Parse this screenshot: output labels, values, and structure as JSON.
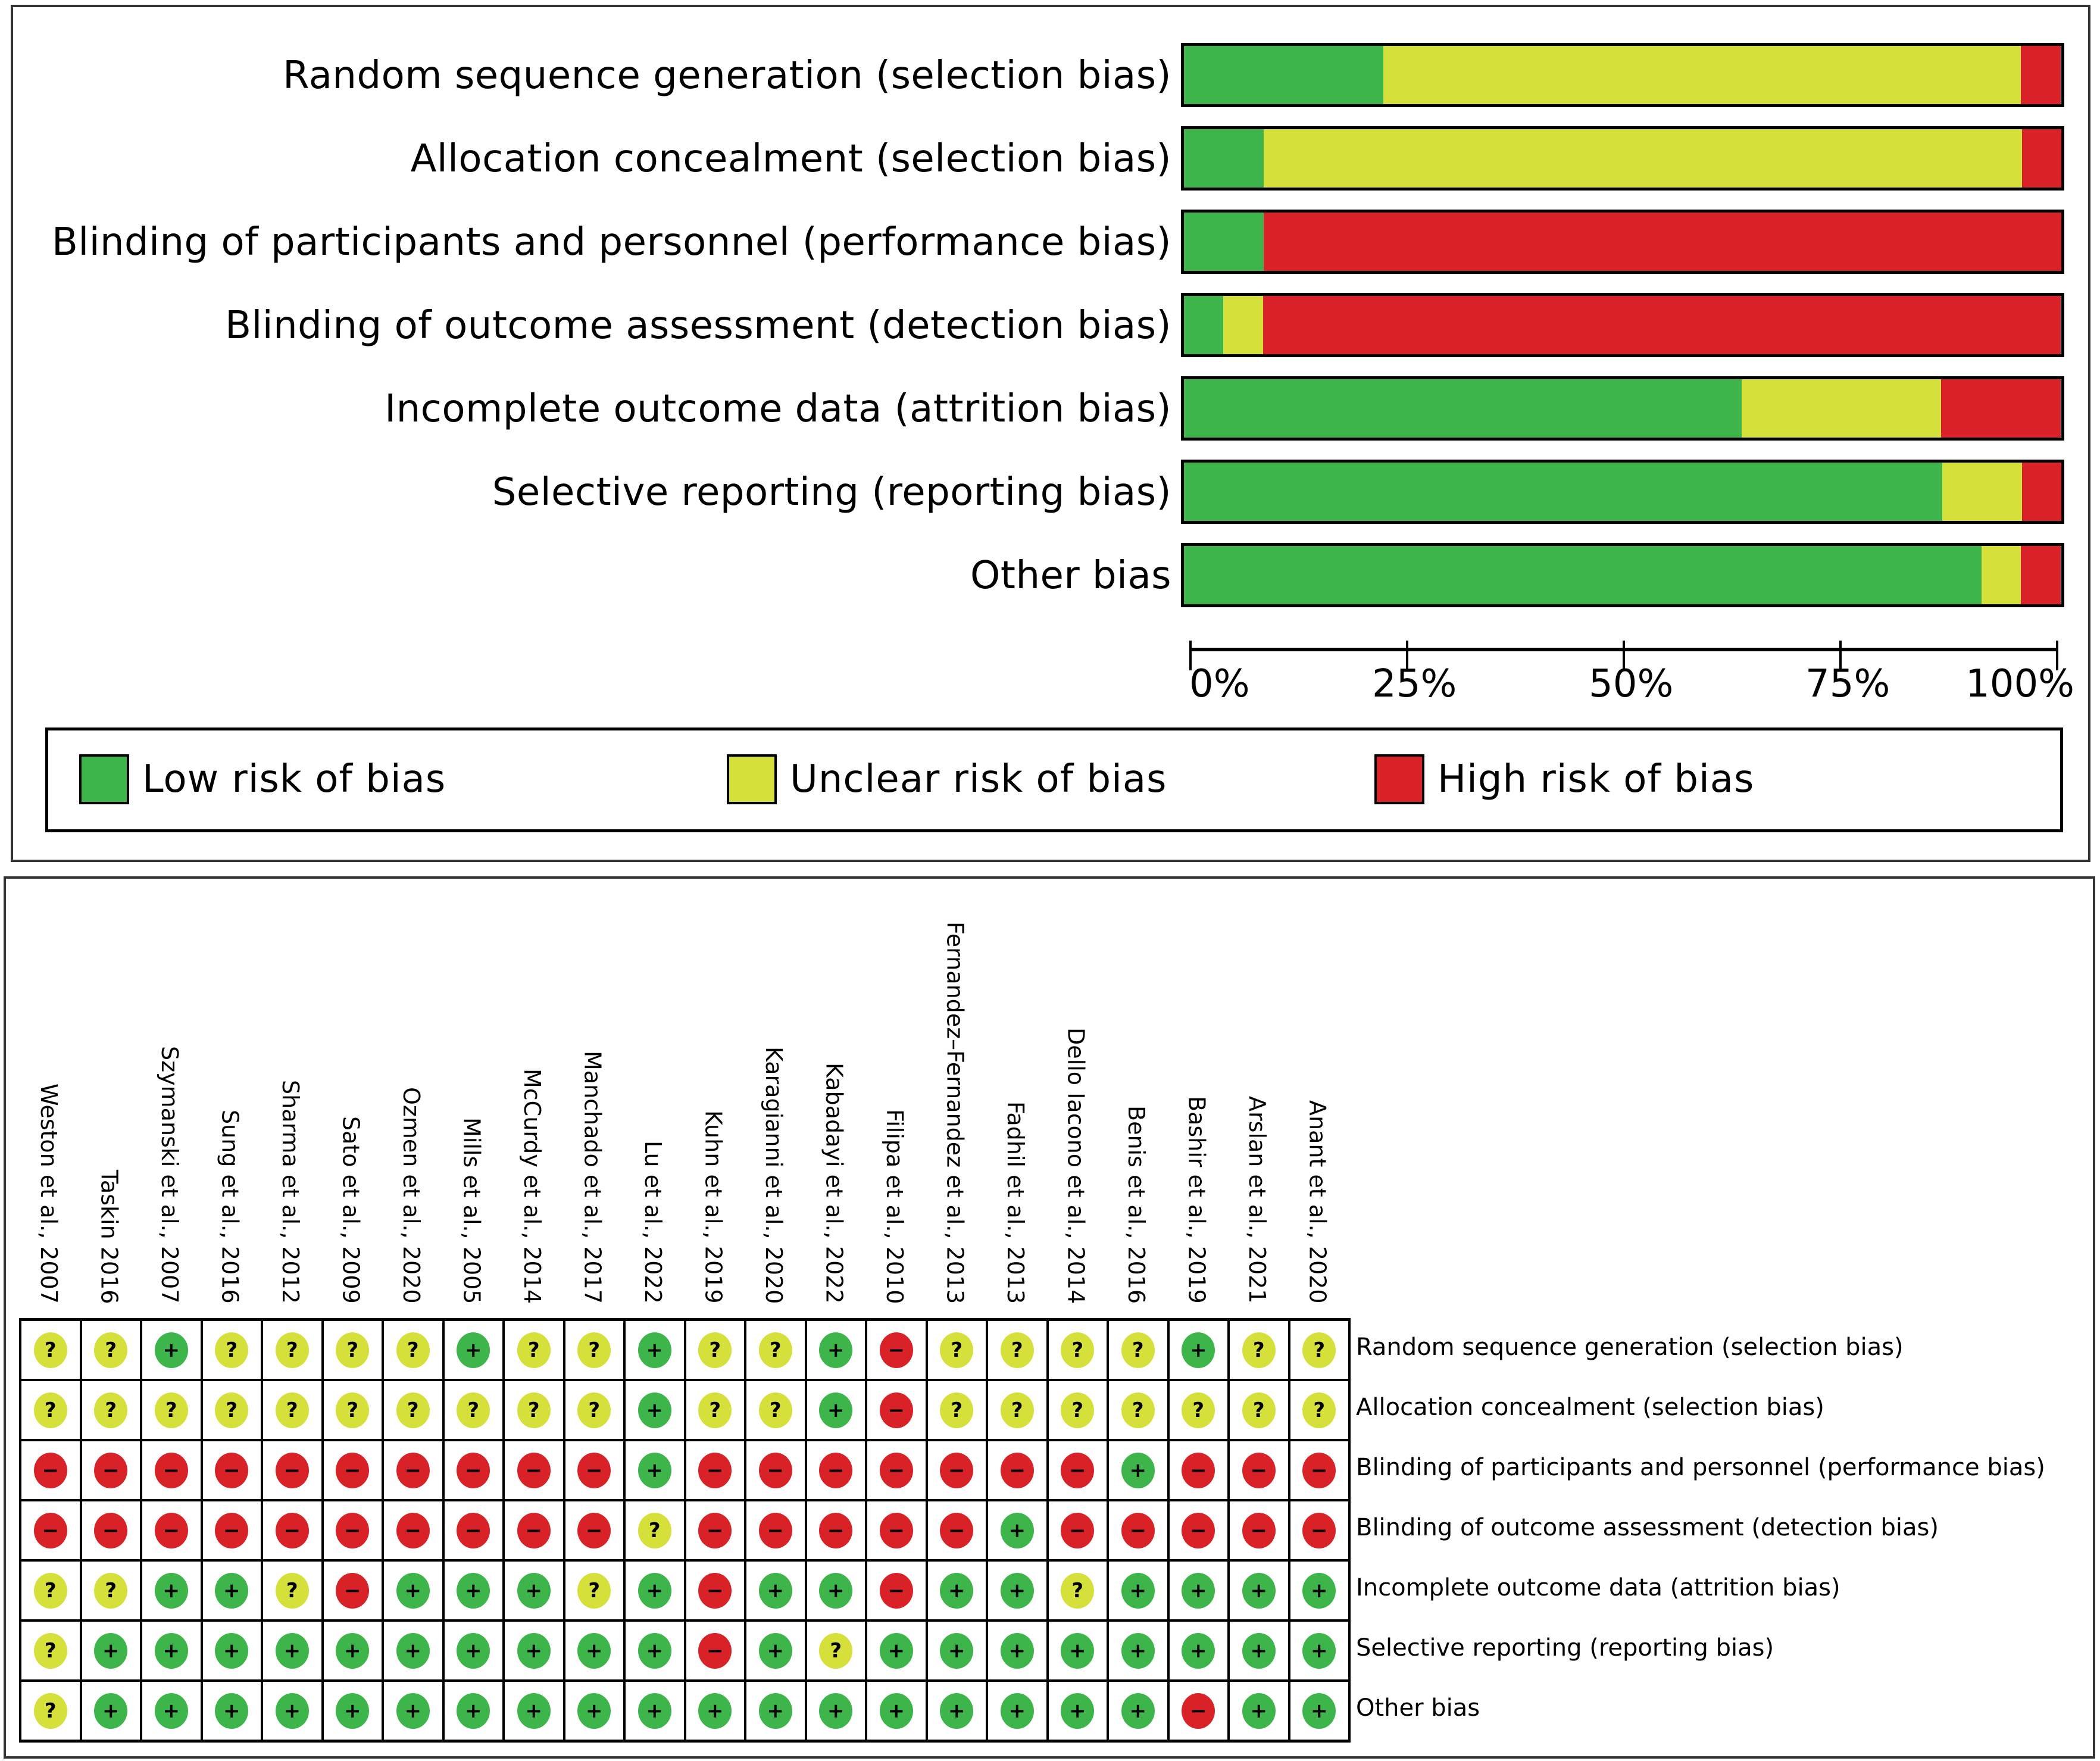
{
  "colors": {
    "low": "#3db54a",
    "unclear": "#d6e03a",
    "high": "#d82228"
  },
  "symbols": {
    "low": "+",
    "unclear": "?",
    "high": "−"
  },
  "chart_data": [
    {
      "type": "bar",
      "orientation": "horizontal-stacked-percent",
      "title": "Risk of bias graph",
      "categories": [
        "Random sequence generation (selection bias)",
        "Allocation concealment (selection bias)",
        "Blinding of participants and personnel (performance bias)",
        "Blinding of outcome assessment (detection bias)",
        "Incomplete outcome data (attrition bias)",
        "Selective reporting (reporting bias)",
        "Other bias"
      ],
      "series": [
        {
          "name": "Low risk of bias",
          "key": "low",
          "values": [
            22.7,
            9.1,
            9.1,
            4.5,
            63.6,
            86.4,
            90.9
          ]
        },
        {
          "name": "Unclear risk of bias",
          "key": "unclear",
          "values": [
            72.7,
            86.4,
            0,
            4.5,
            22.7,
            9.1,
            4.5
          ]
        },
        {
          "name": "High risk of bias",
          "key": "high",
          "values": [
            4.5,
            4.5,
            90.9,
            90.9,
            13.6,
            4.5,
            4.5
          ]
        }
      ],
      "xlabel": "",
      "ylabel": "",
      "xlim": [
        0,
        100
      ],
      "xticks": [
        "0%",
        "25%",
        "50%",
        "75%",
        "100%"
      ],
      "legend": [
        "Low risk of bias",
        "Unclear risk of bias",
        "High risk of bias"
      ],
      "legend_position": "bottom"
    },
    {
      "type": "table",
      "title": "Risk of bias summary",
      "studies": [
        "Weston et al., 2007",
        "Taskin 2016",
        "Szymanski et al., 2007",
        "Sung et al., 2016",
        "Sharma et al., 2012",
        "Sato et al., 2009",
        "Ozmen et al., 2020",
        "Mills et al., 2005",
        "McCurdy et al., 2014",
        "Manchado et al., 2017",
        "Lu et al., 2022",
        "Kuhn et al., 2019",
        "Karagianni et al., 2020",
        "Kabadayi et al., 2022",
        "Filipa et al., 2010",
        "Fernandez–Fernandez et al., 2013",
        "Fadhil et al., 2013",
        "Dello Iacono et al., 2014",
        "Benis et al., 2016",
        "Bashir et al., 2019",
        "Arslan et al., 2021",
        "Anant et al., 2020"
      ],
      "domains": [
        "Random sequence generation (selection bias)",
        "Allocation concealment (selection bias)",
        "Blinding of participants and personnel (performance bias)",
        "Blinding of outcome assessment (detection bias)",
        "Incomplete outcome data (attrition bias)",
        "Selective reporting (reporting bias)",
        "Other bias"
      ],
      "judgements": [
        [
          "unclear",
          "unclear",
          "low",
          "unclear",
          "unclear",
          "unclear",
          "unclear",
          "low",
          "unclear",
          "unclear",
          "low",
          "unclear",
          "unclear",
          "low",
          "high",
          "unclear",
          "unclear",
          "unclear",
          "unclear",
          "low",
          "unclear",
          "unclear"
        ],
        [
          "unclear",
          "unclear",
          "unclear",
          "unclear",
          "unclear",
          "unclear",
          "unclear",
          "unclear",
          "unclear",
          "unclear",
          "low",
          "unclear",
          "unclear",
          "low",
          "high",
          "unclear",
          "unclear",
          "unclear",
          "unclear",
          "unclear",
          "unclear",
          "unclear"
        ],
        [
          "high",
          "high",
          "high",
          "high",
          "high",
          "high",
          "high",
          "high",
          "high",
          "high",
          "low",
          "high",
          "high",
          "high",
          "high",
          "high",
          "high",
          "high",
          "low",
          "high",
          "high",
          "high"
        ],
        [
          "high",
          "high",
          "high",
          "high",
          "high",
          "high",
          "high",
          "high",
          "high",
          "high",
          "unclear",
          "high",
          "high",
          "high",
          "high",
          "high",
          "low",
          "high",
          "high",
          "high",
          "high",
          "high"
        ],
        [
          "unclear",
          "unclear",
          "low",
          "low",
          "unclear",
          "high",
          "low",
          "low",
          "low",
          "unclear",
          "low",
          "high",
          "low",
          "low",
          "high",
          "low",
          "low",
          "unclear",
          "low",
          "low",
          "low",
          "low"
        ],
        [
          "unclear",
          "low",
          "low",
          "low",
          "low",
          "low",
          "low",
          "low",
          "low",
          "low",
          "low",
          "high",
          "low",
          "unclear",
          "low",
          "low",
          "low",
          "low",
          "low",
          "low",
          "low",
          "low"
        ],
        [
          "unclear",
          "low",
          "low",
          "low",
          "low",
          "low",
          "low",
          "low",
          "low",
          "low",
          "low",
          "low",
          "low",
          "low",
          "low",
          "low",
          "low",
          "low",
          "low",
          "high",
          "low",
          "low"
        ]
      ]
    }
  ]
}
